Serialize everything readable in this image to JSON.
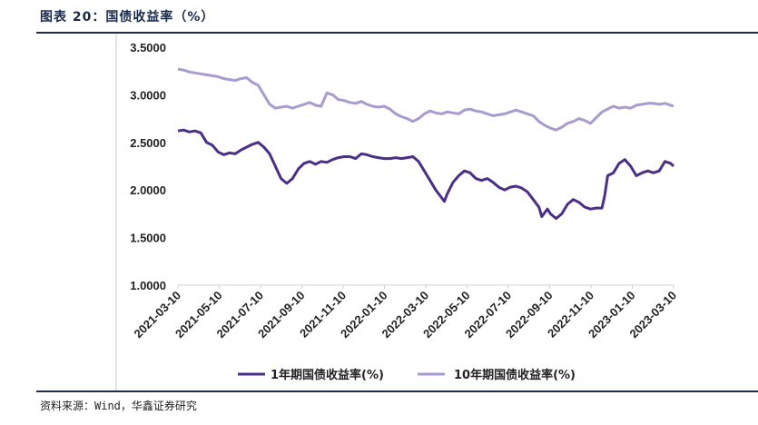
{
  "header": {
    "title": "图表 20：国债收益率（%）"
  },
  "footer": {
    "source": "资料来源：Wind，华鑫证券研究"
  },
  "chart_data": {
    "type": "line",
    "title": "国债收益率（%）",
    "ylim": [
      1.0,
      3.5
    ],
    "yticks": [
      "3.5000",
      "3.0000",
      "2.5000",
      "2.0000",
      "1.5000",
      "1.0000"
    ],
    "xticks": [
      "2021-03-10",
      "2021-05-10",
      "2021-07-10",
      "2021-09-10",
      "2021-11-10",
      "2022-01-10",
      "2022-03-10",
      "2022-05-10",
      "2022-07-10",
      "2022-09-10",
      "2022-11-10",
      "2023-01-10",
      "2023-03-10"
    ],
    "series": [
      {
        "name": "1年期国债收益率(%)",
        "color": "#4b2f86",
        "points": [
          [
            0.0,
            2.62
          ],
          [
            0.1,
            2.63
          ],
          [
            0.2,
            2.61
          ],
          [
            0.3,
            2.62
          ],
          [
            0.4,
            2.6
          ],
          [
            0.5,
            2.5
          ],
          [
            0.6,
            2.47
          ],
          [
            0.7,
            2.4
          ],
          [
            0.8,
            2.37
          ],
          [
            0.9,
            2.39
          ],
          [
            1.0,
            2.38
          ],
          [
            1.1,
            2.42
          ],
          [
            1.2,
            2.45
          ],
          [
            1.3,
            2.48
          ],
          [
            1.4,
            2.5
          ],
          [
            1.5,
            2.45
          ],
          [
            1.6,
            2.38
          ],
          [
            1.7,
            2.25
          ],
          [
            1.8,
            2.12
          ],
          [
            1.9,
            2.07
          ],
          [
            2.0,
            2.12
          ],
          [
            2.1,
            2.22
          ],
          [
            2.2,
            2.28
          ],
          [
            2.3,
            2.3
          ],
          [
            2.4,
            2.27
          ],
          [
            2.5,
            2.3
          ],
          [
            2.6,
            2.29
          ],
          [
            2.7,
            2.32
          ],
          [
            2.8,
            2.34
          ],
          [
            2.9,
            2.35
          ],
          [
            3.0,
            2.35
          ],
          [
            3.1,
            2.33
          ],
          [
            3.2,
            2.38
          ],
          [
            3.3,
            2.37
          ],
          [
            3.4,
            2.35
          ],
          [
            3.5,
            2.34
          ],
          [
            3.6,
            2.33
          ],
          [
            3.7,
            2.33
          ],
          [
            3.8,
            2.34
          ],
          [
            3.9,
            2.33
          ],
          [
            4.0,
            2.34
          ],
          [
            4.1,
            2.35
          ],
          [
            4.2,
            2.3
          ],
          [
            4.3,
            2.2
          ],
          [
            4.4,
            2.1
          ],
          [
            4.5,
            2.0
          ],
          [
            4.6,
            1.92
          ],
          [
            4.65,
            1.88
          ],
          [
            4.7,
            1.96
          ],
          [
            4.8,
            2.08
          ],
          [
            4.9,
            2.15
          ],
          [
            5.0,
            2.2
          ],
          [
            5.1,
            2.18
          ],
          [
            5.2,
            2.12
          ],
          [
            5.3,
            2.1
          ],
          [
            5.4,
            2.12
          ],
          [
            5.5,
            2.08
          ],
          [
            5.6,
            2.03
          ],
          [
            5.7,
            2.0
          ],
          [
            5.8,
            2.03
          ],
          [
            5.9,
            2.04
          ],
          [
            6.0,
            2.02
          ],
          [
            6.1,
            1.98
          ],
          [
            6.2,
            1.9
          ],
          [
            6.3,
            1.82
          ],
          [
            6.35,
            1.72
          ],
          [
            6.45,
            1.8
          ],
          [
            6.5,
            1.75
          ],
          [
            6.6,
            1.7
          ],
          [
            6.7,
            1.75
          ],
          [
            6.8,
            1.85
          ],
          [
            6.9,
            1.9
          ],
          [
            7.0,
            1.87
          ],
          [
            7.1,
            1.82
          ],
          [
            7.2,
            1.8
          ],
          [
            7.3,
            1.81
          ],
          [
            7.4,
            1.81
          ],
          [
            7.45,
            1.95
          ],
          [
            7.5,
            2.15
          ],
          [
            7.6,
            2.18
          ],
          [
            7.7,
            2.28
          ],
          [
            7.8,
            2.32
          ],
          [
            7.9,
            2.25
          ],
          [
            8.0,
            2.15
          ],
          [
            8.1,
            2.18
          ],
          [
            8.2,
            2.2
          ],
          [
            8.3,
            2.18
          ],
          [
            8.4,
            2.2
          ],
          [
            8.5,
            2.3
          ],
          [
            8.6,
            2.28
          ],
          [
            8.65,
            2.25
          ]
        ]
      },
      {
        "name": "10年期国债收益率(%)",
        "color": "#a89bd0",
        "points": [
          [
            0.0,
            3.27
          ],
          [
            0.1,
            3.26
          ],
          [
            0.2,
            3.24
          ],
          [
            0.3,
            3.23
          ],
          [
            0.4,
            3.22
          ],
          [
            0.5,
            3.21
          ],
          [
            0.6,
            3.2
          ],
          [
            0.7,
            3.19
          ],
          [
            0.8,
            3.17
          ],
          [
            0.9,
            3.16
          ],
          [
            1.0,
            3.15
          ],
          [
            1.1,
            3.17
          ],
          [
            1.2,
            3.18
          ],
          [
            1.3,
            3.13
          ],
          [
            1.4,
            3.1
          ],
          [
            1.5,
            3.0
          ],
          [
            1.6,
            2.9
          ],
          [
            1.7,
            2.86
          ],
          [
            1.8,
            2.87
          ],
          [
            1.9,
            2.88
          ],
          [
            2.0,
            2.86
          ],
          [
            2.1,
            2.88
          ],
          [
            2.2,
            2.9
          ],
          [
            2.3,
            2.92
          ],
          [
            2.4,
            2.89
          ],
          [
            2.5,
            2.88
          ],
          [
            2.6,
            3.02
          ],
          [
            2.7,
            3.0
          ],
          [
            2.8,
            2.95
          ],
          [
            2.9,
            2.94
          ],
          [
            3.0,
            2.92
          ],
          [
            3.1,
            2.91
          ],
          [
            3.2,
            2.93
          ],
          [
            3.3,
            2.9
          ],
          [
            3.4,
            2.88
          ],
          [
            3.5,
            2.87
          ],
          [
            3.6,
            2.88
          ],
          [
            3.7,
            2.85
          ],
          [
            3.8,
            2.8
          ],
          [
            3.9,
            2.77
          ],
          [
            4.0,
            2.75
          ],
          [
            4.1,
            2.72
          ],
          [
            4.2,
            2.75
          ],
          [
            4.3,
            2.8
          ],
          [
            4.4,
            2.83
          ],
          [
            4.5,
            2.81
          ],
          [
            4.6,
            2.8
          ],
          [
            4.7,
            2.82
          ],
          [
            4.8,
            2.81
          ],
          [
            4.9,
            2.8
          ],
          [
            5.0,
            2.84
          ],
          [
            5.1,
            2.85
          ],
          [
            5.2,
            2.83
          ],
          [
            5.3,
            2.82
          ],
          [
            5.4,
            2.8
          ],
          [
            5.5,
            2.78
          ],
          [
            5.6,
            2.79
          ],
          [
            5.7,
            2.8
          ],
          [
            5.8,
            2.82
          ],
          [
            5.9,
            2.84
          ],
          [
            6.0,
            2.82
          ],
          [
            6.1,
            2.8
          ],
          [
            6.2,
            2.78
          ],
          [
            6.3,
            2.72
          ],
          [
            6.4,
            2.68
          ],
          [
            6.5,
            2.65
          ],
          [
            6.6,
            2.63
          ],
          [
            6.7,
            2.66
          ],
          [
            6.8,
            2.7
          ],
          [
            6.9,
            2.72
          ],
          [
            7.0,
            2.75
          ],
          [
            7.1,
            2.73
          ],
          [
            7.2,
            2.7
          ],
          [
            7.3,
            2.76
          ],
          [
            7.4,
            2.82
          ],
          [
            7.5,
            2.85
          ],
          [
            7.6,
            2.88
          ],
          [
            7.7,
            2.86
          ],
          [
            7.8,
            2.87
          ],
          [
            7.9,
            2.86
          ],
          [
            8.0,
            2.89
          ],
          [
            8.1,
            2.9
          ],
          [
            8.2,
            2.91
          ],
          [
            8.3,
            2.91
          ],
          [
            8.4,
            2.9
          ],
          [
            8.5,
            2.91
          ],
          [
            8.6,
            2.89
          ],
          [
            8.65,
            2.88
          ]
        ]
      }
    ],
    "legend": {
      "position": "bottom"
    },
    "grid": false
  }
}
